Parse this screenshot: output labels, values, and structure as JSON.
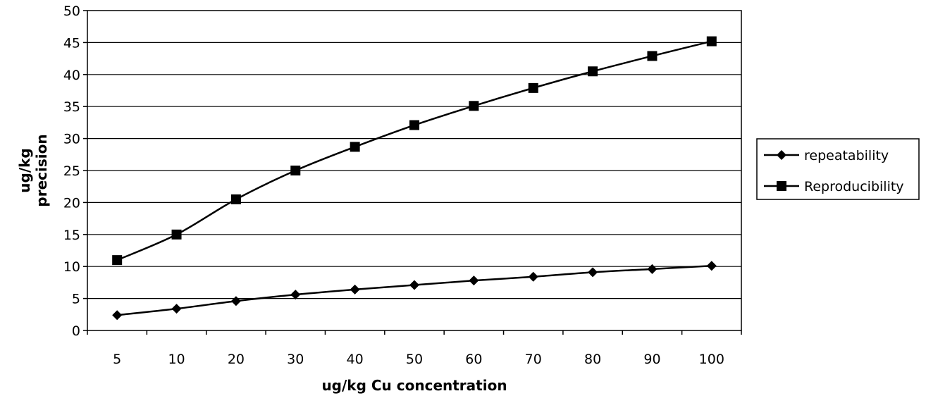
{
  "chart_data": {
    "type": "line",
    "categories": [
      "5",
      "10",
      "20",
      "30",
      "40",
      "50",
      "60",
      "70",
      "80",
      "90",
      "100"
    ],
    "series": [
      {
        "name": "repeatability",
        "marker": "diamond",
        "values": [
          2.4,
          3.4,
          4.6,
          5.6,
          6.4,
          7.1,
          7.8,
          8.4,
          9.1,
          9.6,
          10.1
        ]
      },
      {
        "name": "Reproducibility",
        "marker": "square",
        "values": [
          11.0,
          15.0,
          20.5,
          25.0,
          28.7,
          32.1,
          35.1,
          37.9,
          40.5,
          42.9,
          45.2
        ]
      }
    ],
    "xlabel": "ug/kg Cu concentration",
    "ylabel_lines": [
      "ug/kg",
      "precision"
    ],
    "ylim": [
      0,
      50
    ],
    "yticks": [
      0,
      5,
      10,
      15,
      20,
      25,
      30,
      35,
      40,
      45,
      50
    ],
    "grid": true,
    "legend_position": "right",
    "colors": {
      "line": "#000000",
      "grid": "#000000",
      "background": "#ffffff"
    }
  }
}
